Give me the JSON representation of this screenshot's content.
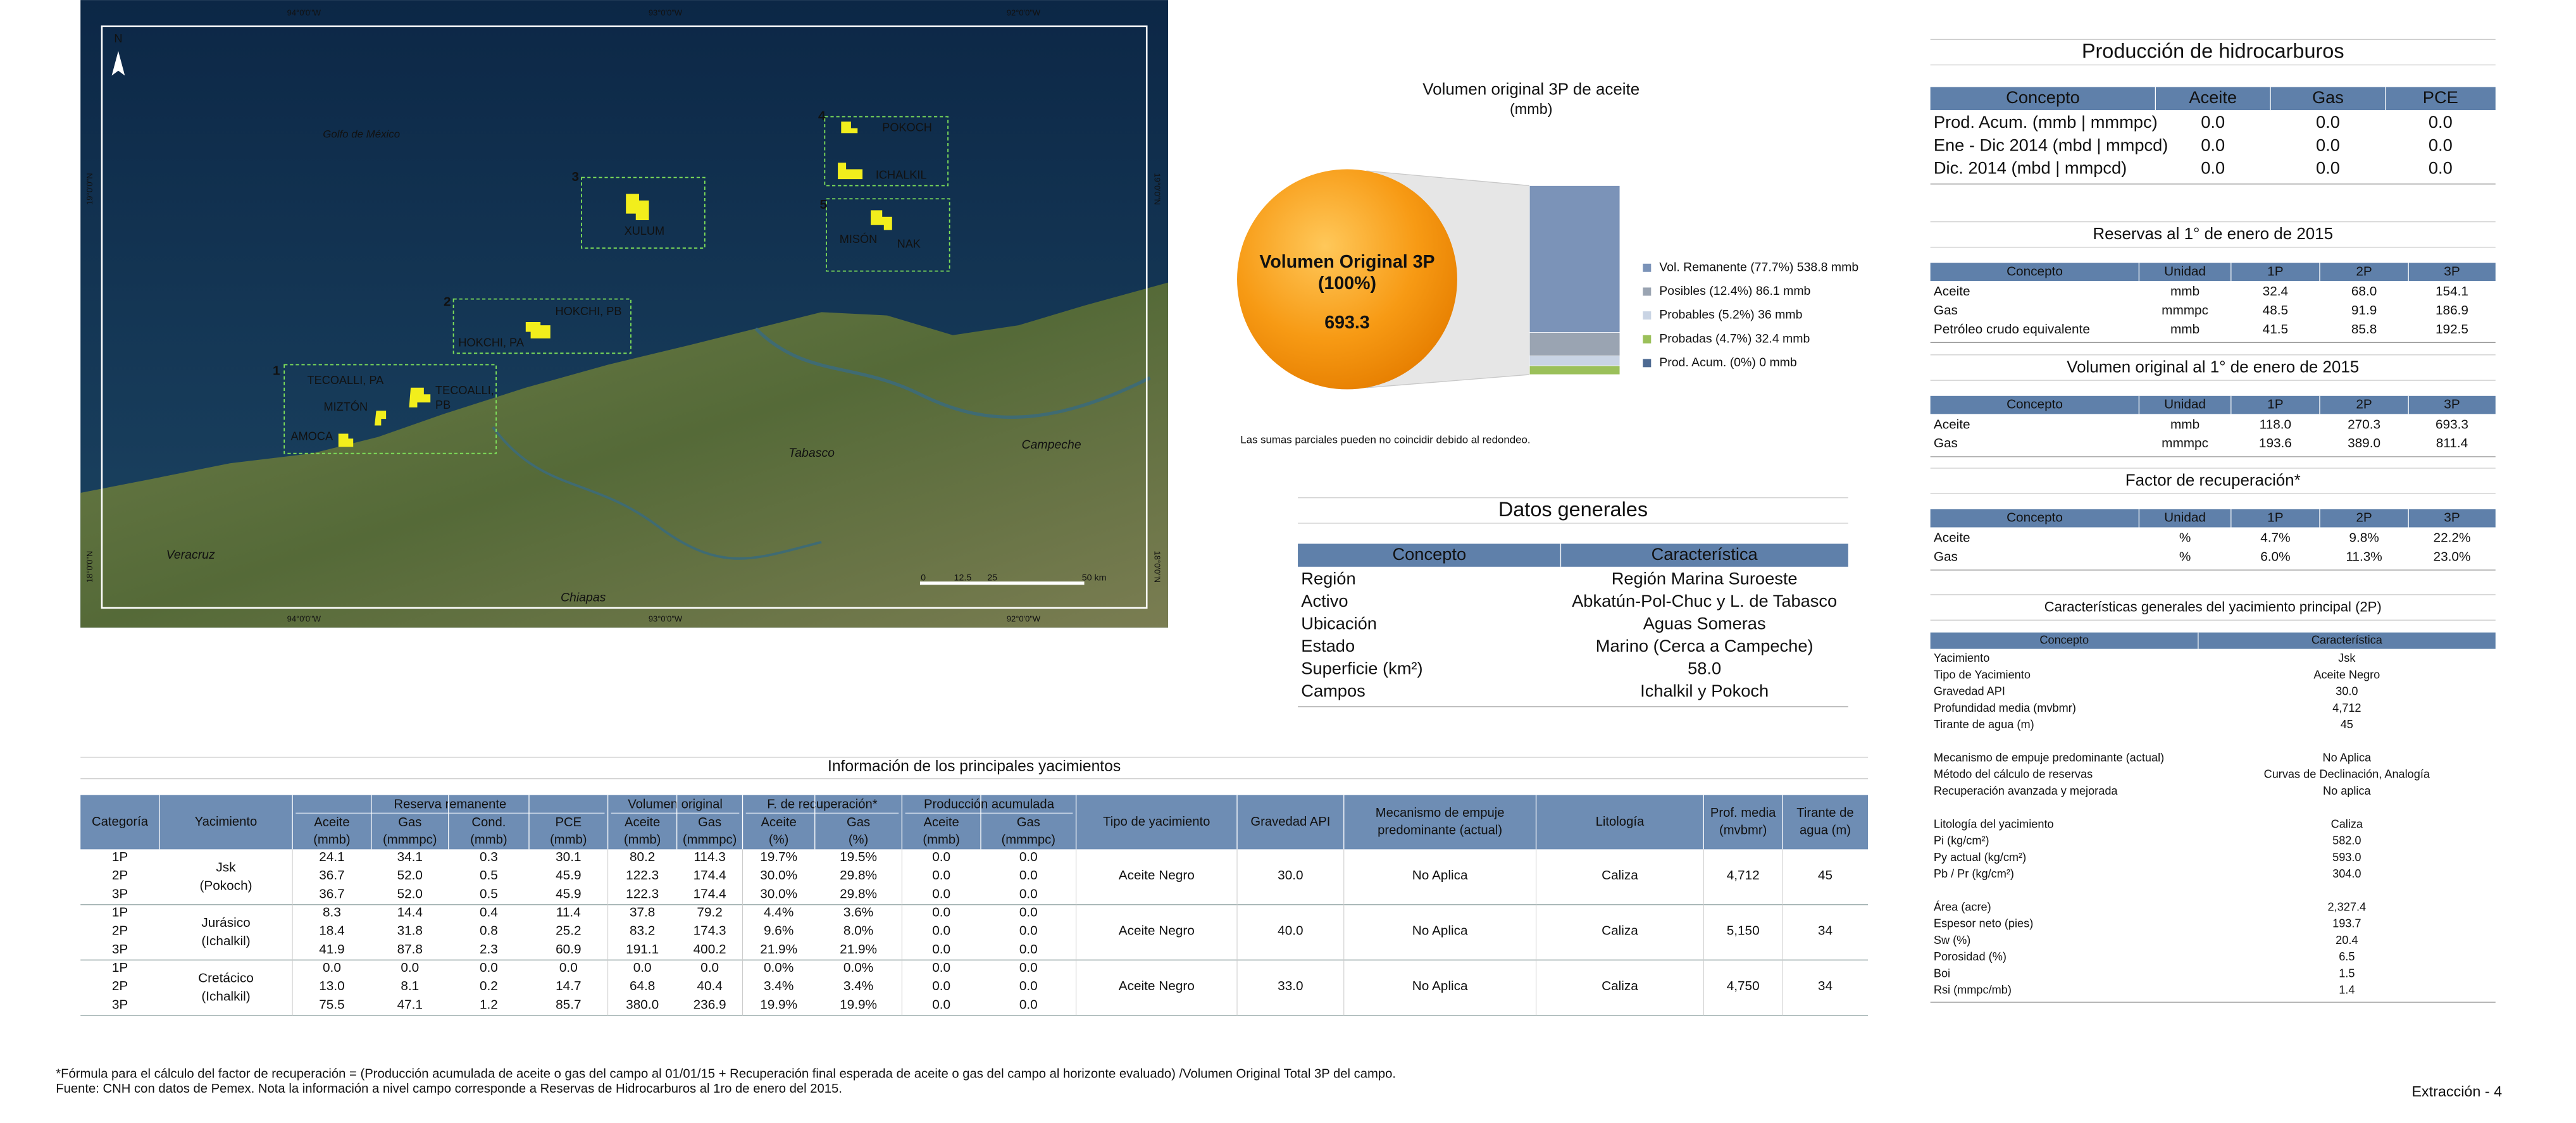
{
  "map": {
    "sea_label": "Golfo de México",
    "north": "N",
    "lon_labels": [
      "94°0'0\"W",
      "93°0'0\"W",
      "92°0'0\"W"
    ],
    "lat_labels": [
      "19°0'0\"N",
      "18°0'0\"N"
    ],
    "areas": [
      {
        "number": "1",
        "fields": [
          [
            "TECOALLI, PA"
          ],
          [
            "TECOALLI,",
            "PB"
          ],
          [
            "MIZTÓN"
          ],
          [
            "AMOCA"
          ]
        ]
      },
      {
        "number": "2",
        "fields": [
          [
            "HOKCHI, PB"
          ],
          [
            "HOKCHI, PA"
          ]
        ]
      },
      {
        "number": "3",
        "fields": [
          [
            "XULUM"
          ]
        ]
      },
      {
        "number": "4",
        "fields": [
          [
            "POKOCH"
          ],
          [
            "ICHALKIL"
          ]
        ]
      },
      {
        "number": "5",
        "fields": [
          [
            "MISÓN"
          ],
          [
            "NAK"
          ]
        ]
      }
    ],
    "regions": [
      "Tabasco",
      "Campeche",
      "Veracruz",
      "Chiapas"
    ],
    "scale": [
      "0",
      "12.5",
      "25",
      "50 km"
    ]
  },
  "volume_chart": {
    "type": "stacked-bar",
    "title": "Volumen original 3P de aceite",
    "subtitle": "(mmb)",
    "circle_title": "Volumen Original 3P",
    "circle_share": "(100%)",
    "total": 693.3,
    "segments": [
      {
        "label": "Vol. Remanente (77.7%) 538.8 mmb",
        "value": 538.8,
        "color": "#7b93b8"
      },
      {
        "label": "Posibles (12.4%) 86.1 mmb",
        "value": 86.1,
        "color": "#9aa4b2"
      },
      {
        "label": "Probables (5.2%) 36 mmb",
        "value": 36,
        "color": "#c9d4e4"
      },
      {
        "label": "Probadas (4.7%) 32.4 mmb",
        "value": 32.4,
        "color": "#9bc05a"
      },
      {
        "label": "Prod. Acum. (0%) 0 mmb",
        "value": 0,
        "color": "#4e6a92"
      }
    ],
    "note": "Las sumas parciales pueden no coincidir debido al redondeo."
  },
  "general_data": {
    "title": "Datos generales",
    "headers": [
      "Concepto",
      "Característica"
    ],
    "rows": [
      [
        "Región",
        "Región Marina Suroeste"
      ],
      [
        "Activo",
        "Abkatún-Pol-Chuc y L. de Tabasco"
      ],
      [
        "Ubicación",
        "Aguas Someras"
      ],
      [
        "Estado",
        "Marino (Cerca a Campeche)"
      ],
      [
        "Superficie (km²)",
        "58.0"
      ],
      [
        "Campos",
        "Ichalkil y Pokoch"
      ]
    ]
  },
  "production": {
    "title": "Producción de hidrocarburos",
    "headers": [
      "Concepto",
      "Aceite",
      "Gas",
      "PCE"
    ],
    "rows": [
      [
        "Prod. Acum. (mmb | mmmpc)",
        "0.0",
        "0.0",
        "0.0"
      ],
      [
        "Ene - Dic 2014 (mbd | mmpcd)",
        "0.0",
        "0.0",
        "0.0"
      ],
      [
        "Dic. 2014 (mbd | mmpcd)",
        "0.0",
        "0.0",
        "0.0"
      ]
    ]
  },
  "reserves": {
    "title": "Reservas al 1° de enero de 2015",
    "headers": [
      "Concepto",
      "Unidad",
      "1P",
      "2P",
      "3P"
    ],
    "rows": [
      [
        "Aceite",
        "mmb",
        "32.4",
        "68.0",
        "154.1"
      ],
      [
        "Gas",
        "mmmpc",
        "48.5",
        "91.9",
        "186.9"
      ],
      [
        "Petróleo crudo equivalente",
        "mmb",
        "41.5",
        "85.8",
        "192.5"
      ]
    ]
  },
  "original_volume": {
    "title": "Volumen original al 1° de enero de 2015",
    "headers": [
      "Concepto",
      "Unidad",
      "1P",
      "2P",
      "3P"
    ],
    "rows": [
      [
        "Aceite",
        "mmb",
        "118.0",
        "270.3",
        "693.3"
      ],
      [
        "Gas",
        "mmmpc",
        "193.6",
        "389.0",
        "811.4"
      ]
    ]
  },
  "recovery_factor": {
    "title": "Factor de recuperación*",
    "headers": [
      "Concepto",
      "Unidad",
      "1P",
      "2P",
      "3P"
    ],
    "rows": [
      [
        "Aceite",
        "%",
        "4.7%",
        "9.8%",
        "22.2%"
      ],
      [
        "Gas",
        "%",
        "6.0%",
        "11.3%",
        "23.0%"
      ]
    ]
  },
  "reservoir_features": {
    "title": "Características generales del yacimiento principal (2P)",
    "headers": [
      "Concepto",
      "Característica"
    ],
    "groups": [
      [
        [
          "Yacimiento",
          "Jsk"
        ],
        [
          "Tipo de Yacimiento",
          "Aceite Negro"
        ],
        [
          "Gravedad API",
          "30.0"
        ],
        [
          "Profundidad media (mvbmr)",
          "4,712"
        ],
        [
          "Tirante de agua (m)",
          "45"
        ]
      ],
      [
        [
          "Mecanismo de empuje predominante (actual)",
          "No Aplica"
        ],
        [
          "Método del cálculo de reservas",
          "Curvas de Declinación, Analogía"
        ],
        [
          "Recuperación avanzada y mejorada",
          "No aplica"
        ]
      ],
      [
        [
          "Litología del yacimiento",
          "Caliza"
        ],
        [
          "Pi (kg/cm²)",
          "582.0"
        ],
        [
          "Py actual (kg/cm²)",
          "593.0"
        ],
        [
          "Pb / Pr (kg/cm²)",
          "304.0"
        ]
      ],
      [
        [
          "Área (acre)",
          "2,327.4"
        ],
        [
          "Espesor neto (pies)",
          "193.7"
        ],
        [
          "Sw (%)",
          "20.4"
        ],
        [
          "Porosidad (%)",
          "6.5"
        ],
        [
          "Boi",
          "1.5"
        ],
        [
          "Rsi (mmpc/mb)",
          "1.4"
        ]
      ]
    ]
  },
  "fields_table": {
    "title": "Información de los principales yacimientos",
    "headers": {
      "lead": [
        [
          "Categoría"
        ],
        [
          "Yacimiento"
        ]
      ],
      "groups": [
        {
          "label": "Reserva remanente",
          "columns": [
            [
              "Aceite",
              "(mmb)"
            ],
            [
              "Gas",
              "(mmmpc)"
            ],
            [
              "Cond.",
              "(mmb)"
            ],
            [
              "PCE",
              "(mmb)"
            ]
          ]
        },
        {
          "label": "Volumen original",
          "columns": [
            [
              "Aceite",
              "(mmb)"
            ],
            [
              "Gas",
              "(mmmpc)"
            ]
          ]
        },
        {
          "label": "F. de recuperación*",
          "columns": [
            [
              "Aceite",
              "(%)"
            ],
            [
              "Gas",
              "(%)"
            ]
          ]
        },
        {
          "label": "Producción acumulada",
          "columns": [
            [
              "Aceite",
              "(mmb)"
            ],
            [
              "Gas",
              "(mmmpc)"
            ]
          ]
        }
      ],
      "tail": [
        [
          "Tipo de yacimiento"
        ],
        [
          "Gravedad API"
        ],
        [
          "Mecanismo de empuje",
          "predominante (actual)"
        ],
        [
          "Litología"
        ],
        [
          "Prof. media",
          "(mvbmr)"
        ],
        [
          "Tirante de",
          "agua (m)"
        ]
      ]
    },
    "reservoirs": [
      {
        "name": [
          "Jsk",
          "(Pokoch)"
        ],
        "rows": [
          [
            "1P",
            "24.1",
            "34.1",
            "0.3",
            "30.1",
            "80.2",
            "114.3",
            "19.7%",
            "19.5%",
            "0.0",
            "0.0"
          ],
          [
            "2P",
            "36.7",
            "52.0",
            "0.5",
            "45.9",
            "122.3",
            "174.4",
            "30.0%",
            "29.8%",
            "0.0",
            "0.0"
          ],
          [
            "3P",
            "36.7",
            "52.0",
            "0.5",
            "45.9",
            "122.3",
            "174.4",
            "30.0%",
            "29.8%",
            "0.0",
            "0.0"
          ]
        ],
        "tail": [
          "Aceite Negro",
          "30.0",
          "No Aplica",
          "Caliza",
          "4,712",
          "45"
        ]
      },
      {
        "name": [
          "Jurásico",
          "(Ichalkil)"
        ],
        "rows": [
          [
            "1P",
            "8.3",
            "14.4",
            "0.4",
            "11.4",
            "37.8",
            "79.2",
            "4.4%",
            "3.6%",
            "0.0",
            "0.0"
          ],
          [
            "2P",
            "18.4",
            "31.8",
            "0.8",
            "25.2",
            "83.2",
            "174.3",
            "9.6%",
            "8.0%",
            "0.0",
            "0.0"
          ],
          [
            "3P",
            "41.9",
            "87.8",
            "2.3",
            "60.9",
            "191.1",
            "400.2",
            "21.9%",
            "21.9%",
            "0.0",
            "0.0"
          ]
        ],
        "tail": [
          "Aceite Negro",
          "40.0",
          "No Aplica",
          "Caliza",
          "5,150",
          "34"
        ]
      },
      {
        "name": [
          "Cretácico",
          "(Ichalkil)"
        ],
        "rows": [
          [
            "1P",
            "0.0",
            "0.0",
            "0.0",
            "0.0",
            "0.0",
            "0.0",
            "0.0%",
            "0.0%",
            "0.0",
            "0.0"
          ],
          [
            "2P",
            "13.0",
            "8.1",
            "0.2",
            "14.7",
            "64.8",
            "40.4",
            "3.4%",
            "3.4%",
            "0.0",
            "0.0"
          ],
          [
            "3P",
            "75.5",
            "47.1",
            "1.2",
            "85.7",
            "380.0",
            "236.9",
            "19.9%",
            "19.9%",
            "0.0",
            "0.0"
          ]
        ],
        "tail": [
          "Aceite Negro",
          "33.0",
          "No Aplica",
          "Caliza",
          "4,750",
          "34"
        ]
      }
    ]
  },
  "footer": {
    "formula_note": "*Fórmula para el cálculo del factor de recuperación = (Producción acumulada de aceite o gas del campo al 01/01/15 + Recuperación final esperada de aceite o gas del campo al horizonte evaluado) /Volumen Original Total 3P del campo.",
    "source": "Fuente: CNH con datos de Pemex. Nota la información a nivel campo corresponde a Reservas de Hidrocarburos al 1ro de enero del 2015.",
    "page_label": "Extracción - 4"
  }
}
